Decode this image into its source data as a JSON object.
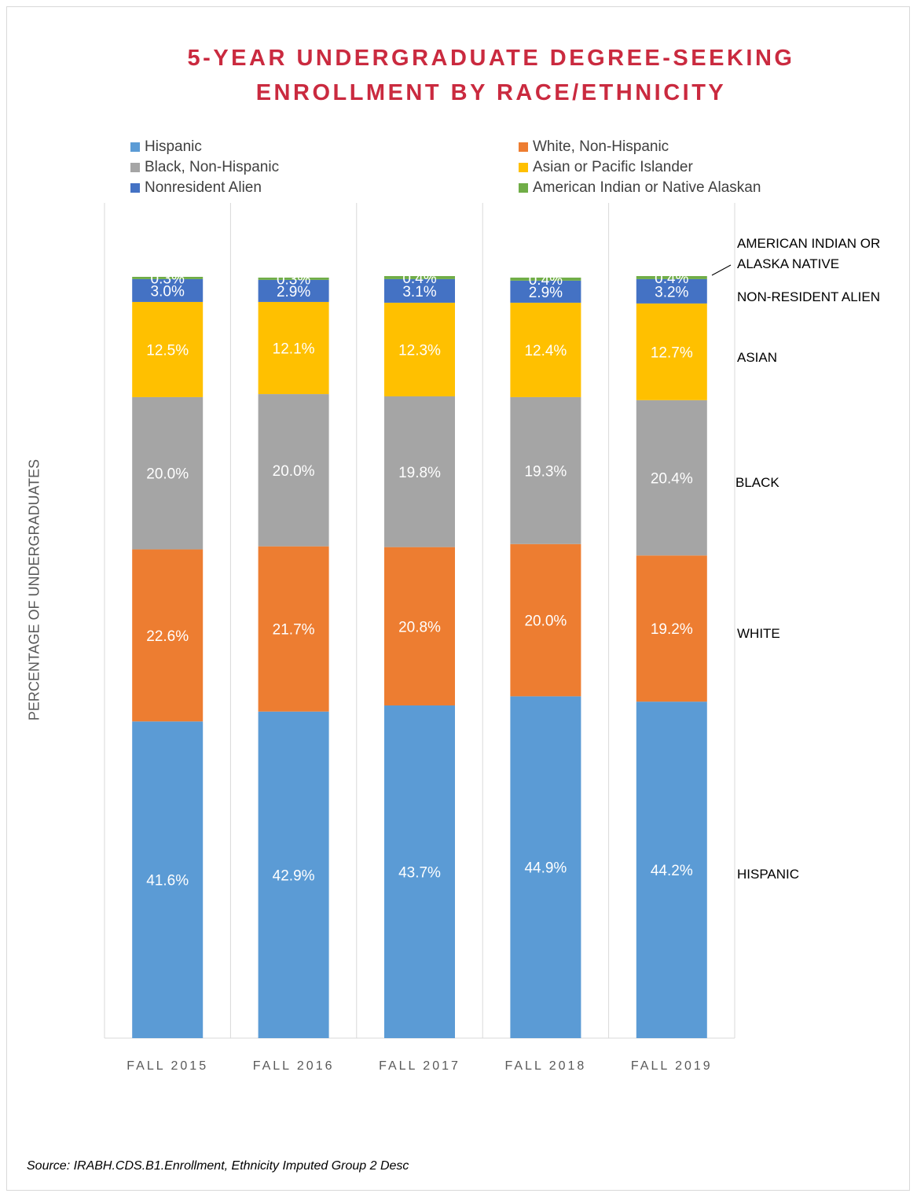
{
  "title_lines": [
    "5-YEAR UNDERGRADUATE DEGREE-SEEKING",
    "ENROLLMENT BY RACE/ETHNICITY"
  ],
  "ylabel": "PERCENTAGE OF UNDERGRADUATES",
  "source": "Source: IRABH.CDS.B1.Enrollment, Ethnicity Imputed Group 2 Desc",
  "legend": [
    {
      "label": "Hispanic",
      "color": "#5b9bd5"
    },
    {
      "label": "White, Non-Hispanic",
      "color": "#ed7d31"
    },
    {
      "label": "Black, Non-Hispanic",
      "color": "#a5a5a5"
    },
    {
      "label": "Asian or Pacific Islander",
      "color": "#ffc000"
    },
    {
      "label": "Nonresident Alien",
      "color": "#4472c4"
    },
    {
      "label": "American Indian or Native Alaskan",
      "color": "#70ad47"
    }
  ],
  "right_labels": [
    "HISPANIC",
    "WHITE",
    "BLACK",
    "ASIAN",
    "NON-RESIDENT ALIEN",
    "AMERICAN INDIAN OR",
    "ALASKA NATIVE"
  ],
  "chart_data": {
    "type": "bar",
    "stacked": true,
    "categories": [
      "FALL 2015",
      "FALL 2016",
      "FALL 2017",
      "FALL 2018",
      "FALL 2019"
    ],
    "series": [
      {
        "name": "Hispanic",
        "values": [
          41.6,
          42.9,
          43.7,
          44.9,
          44.2
        ],
        "labels": [
          "41.6%",
          "42.9%",
          "43.7%",
          "44.9%",
          "44.2%"
        ]
      },
      {
        "name": "White, Non-Hispanic",
        "values": [
          22.6,
          21.7,
          20.8,
          20.0,
          19.2
        ],
        "labels": [
          "22.6%",
          "21.7%",
          "20.8%",
          "20.0%",
          "19.2%"
        ]
      },
      {
        "name": "Black, Non-Hispanic",
        "values": [
          20.0,
          20.0,
          19.8,
          19.3,
          20.4
        ],
        "labels": [
          "20.0%",
          "20.0%",
          "19.8%",
          "19.3%",
          "20.4%"
        ]
      },
      {
        "name": "Asian or Pacific Islander",
        "values": [
          12.5,
          12.1,
          12.3,
          12.4,
          12.7
        ],
        "labels": [
          "12.5%",
          "12.1%",
          "12.3%",
          "12.4%",
          "12.7%"
        ]
      },
      {
        "name": "Nonresident Alien",
        "values": [
          3.0,
          2.9,
          3.1,
          2.9,
          3.2
        ],
        "labels": [
          "3.0%",
          "2.9%",
          "3.1%",
          "2.9%",
          "3.2%"
        ]
      },
      {
        "name": "American Indian or Native Alaskan",
        "values": [
          0.3,
          0.3,
          0.4,
          0.4,
          0.4
        ],
        "labels": [
          "0.3%",
          "0.3%",
          "0.4%",
          "0.4%",
          "0.4%"
        ]
      }
    ],
    "ylim": [
      0,
      100
    ],
    "grid": "vertical",
    "legend_position": "top"
  }
}
